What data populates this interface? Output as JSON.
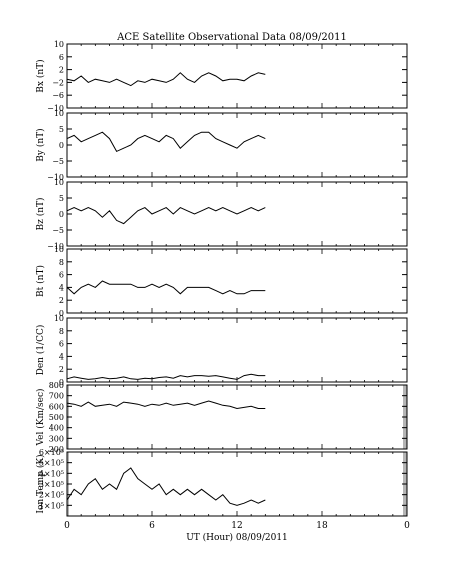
{
  "title": "ACE Satellite Observational Data   08/09/2011",
  "x_axis": {
    "label": "UT (Hour)  08/09/2011",
    "ticks": [
      "0",
      "6",
      "12",
      "18",
      "0"
    ],
    "range": [
      0,
      24
    ]
  },
  "chart_data": [
    {
      "type": "line",
      "ylabel": "Bx (nT)",
      "ylim": [
        -10,
        10
      ],
      "yticks": [
        {
          "v": 10,
          "t": "10"
        },
        {
          "v": 6,
          "t": "6"
        },
        {
          "v": 2,
          "t": "2"
        },
        {
          "v": -2,
          "t": "−2"
        },
        {
          "v": -6,
          "t": "−6"
        },
        {
          "v": -10,
          "t": "−10"
        }
      ],
      "data_end_hour": 14,
      "series": [
        {
          "x": [
            0,
            0.5,
            1,
            1.5,
            2,
            2.5,
            3,
            3.5,
            4,
            4.5,
            5,
            5.5,
            6,
            6.5,
            7,
            7.5,
            8,
            8.5,
            9,
            9.5,
            10,
            10.5,
            11,
            11.5,
            12,
            12.5,
            13,
            13.5,
            14
          ],
          "values": [
            -1,
            -1.5,
            0,
            -2,
            -1,
            -1.5,
            -2,
            -1,
            -2,
            -3,
            -1.5,
            -2,
            -1,
            -1.5,
            -2,
            -1,
            1,
            -1,
            -2,
            0,
            1,
            0,
            -1.5,
            -1,
            -1,
            -1.5,
            0,
            1,
            0.5
          ]
        }
      ]
    },
    {
      "type": "line",
      "ylabel": "By (nT)",
      "ylim": [
        -10,
        10
      ],
      "yticks": [
        {
          "v": 10,
          "t": "10"
        },
        {
          "v": 5,
          "t": "5"
        },
        {
          "v": 0,
          "t": "0"
        },
        {
          "v": -5,
          "t": "−5"
        },
        {
          "v": -10,
          "t": "−10"
        }
      ],
      "data_end_hour": 14,
      "series": [
        {
          "x": [
            0,
            0.5,
            1,
            1.5,
            2,
            2.5,
            3,
            3.5,
            4,
            4.5,
            5,
            5.5,
            6,
            6.5,
            7,
            7.5,
            8,
            8.5,
            9,
            9.5,
            10,
            10.5,
            11,
            11.5,
            12,
            12.5,
            13,
            13.5,
            14
          ],
          "values": [
            2,
            3,
            1,
            2,
            3,
            4,
            2,
            -2,
            -1,
            0,
            2,
            3,
            2,
            1,
            3,
            2,
            -1,
            1,
            3,
            4,
            4,
            2,
            1,
            0,
            -1,
            1,
            2,
            3,
            2
          ]
        }
      ]
    },
    {
      "type": "line",
      "ylabel": "Bz (nT)",
      "ylim": [
        -10,
        10
      ],
      "yticks": [
        {
          "v": 10,
          "t": "10"
        },
        {
          "v": 5,
          "t": "5"
        },
        {
          "v": 0,
          "t": "0"
        },
        {
          "v": -5,
          "t": "−5"
        },
        {
          "v": -10,
          "t": "−10"
        }
      ],
      "data_end_hour": 14,
      "series": [
        {
          "x": [
            0,
            0.5,
            1,
            1.5,
            2,
            2.5,
            3,
            3.5,
            4,
            4.5,
            5,
            5.5,
            6,
            6.5,
            7,
            7.5,
            8,
            8.5,
            9,
            9.5,
            10,
            10.5,
            11,
            11.5,
            12,
            12.5,
            13,
            13.5,
            14
          ],
          "values": [
            1,
            2,
            1,
            2,
            1,
            -1,
            1,
            -2,
            -3,
            -1,
            1,
            2,
            0,
            1,
            2,
            0,
            2,
            1,
            0,
            1,
            2,
            1,
            2,
            1,
            0,
            1,
            2,
            1,
            2
          ]
        }
      ]
    },
    {
      "type": "line",
      "ylabel": "Bt (nT)",
      "ylim": [
        0,
        10
      ],
      "yticks": [
        {
          "v": 10,
          "t": "10"
        },
        {
          "v": 8,
          "t": "8"
        },
        {
          "v": 6,
          "t": "6"
        },
        {
          "v": 4,
          "t": "4"
        },
        {
          "v": 2,
          "t": "2"
        },
        {
          "v": 0,
          "t": "0"
        }
      ],
      "data_end_hour": 14,
      "series": [
        {
          "x": [
            0,
            0.5,
            1,
            1.5,
            2,
            2.5,
            3,
            3.5,
            4,
            4.5,
            5,
            5.5,
            6,
            6.5,
            7,
            7.5,
            8,
            8.5,
            9,
            9.5,
            10,
            10.5,
            11,
            11.5,
            12,
            12.5,
            13,
            13.5,
            14
          ],
          "values": [
            4,
            3,
            4,
            4.5,
            4,
            5,
            4.5,
            4.5,
            4.5,
            4.5,
            4,
            4,
            4.5,
            4,
            4.5,
            4,
            3,
            4,
            4,
            4,
            4,
            3.5,
            3,
            3.5,
            3,
            3,
            3.5,
            3.5,
            3.5
          ]
        }
      ]
    },
    {
      "type": "line",
      "ylabel": "Den (1/CC)",
      "ylim": [
        0,
        10
      ],
      "yticks": [
        {
          "v": 10,
          "t": "10"
        },
        {
          "v": 8,
          "t": "8"
        },
        {
          "v": 6,
          "t": "6"
        },
        {
          "v": 4,
          "t": "4"
        },
        {
          "v": 2,
          "t": "2"
        },
        {
          "v": 0,
          "t": "0"
        }
      ],
      "data_end_hour": 14,
      "series": [
        {
          "x": [
            0,
            0.5,
            1,
            1.5,
            2,
            2.5,
            3,
            3.5,
            4,
            4.5,
            5,
            5.5,
            6,
            6.5,
            7,
            7.5,
            8,
            8.5,
            9,
            9.5,
            10,
            10.5,
            11,
            11.5,
            12,
            12.5,
            13,
            13.5,
            14
          ],
          "values": [
            0.5,
            0.8,
            0.6,
            0.4,
            0.5,
            0.7,
            0.5,
            0.6,
            0.8,
            0.5,
            0.4,
            0.6,
            0.5,
            0.7,
            0.8,
            0.6,
            1,
            0.8,
            1,
            1,
            0.9,
            1,
            0.8,
            0.6,
            0.4,
            1,
            1.2,
            1,
            1
          ]
        }
      ]
    },
    {
      "type": "line",
      "ylabel": "Vel (Km/sec)",
      "ylim": [
        200,
        800
      ],
      "yticks": [
        {
          "v": 800,
          "t": "800"
        },
        {
          "v": 700,
          "t": "700"
        },
        {
          "v": 600,
          "t": "600"
        },
        {
          "v": 500,
          "t": "500"
        },
        {
          "v": 400,
          "t": "400"
        },
        {
          "v": 300,
          "t": "300"
        },
        {
          "v": 200,
          "t": "200"
        }
      ],
      "data_end_hour": 14,
      "right_shaded": true,
      "series": [
        {
          "x": [
            0,
            0.5,
            1,
            1.5,
            2,
            2.5,
            3,
            3.5,
            4,
            4.5,
            5,
            5.5,
            6,
            6.5,
            7,
            7.5,
            8,
            8.5,
            9,
            9.5,
            10,
            10.5,
            11,
            11.5,
            12,
            12.5,
            13,
            13.5,
            14
          ],
          "values": [
            630,
            620,
            600,
            640,
            600,
            610,
            620,
            600,
            640,
            630,
            620,
            600,
            620,
            610,
            630,
            610,
            620,
            630,
            610,
            630,
            650,
            630,
            610,
            600,
            580,
            590,
            600,
            580,
            580
          ]
        }
      ]
    },
    {
      "type": "line",
      "ylabel": "Ion Temp (K)",
      "ylim": [
        0,
        600000
      ],
      "yticks": [
        {
          "v": 600000,
          "t": "6×10⁵"
        },
        {
          "v": 500000,
          "t": "5×10⁵"
        },
        {
          "v": 400000,
          "t": "4×10⁵"
        },
        {
          "v": 300000,
          "t": "3×10⁵"
        },
        {
          "v": 200000,
          "t": "2×10⁵"
        },
        {
          "v": 100000,
          "t": "1×10⁵"
        }
      ],
      "data_end_hour": 14,
      "right_shaded": true,
      "series": [
        {
          "x": [
            0,
            0.5,
            1,
            1.5,
            2,
            2.5,
            3,
            3.5,
            4,
            4.5,
            5,
            5.5,
            6,
            6.5,
            7,
            7.5,
            8,
            8.5,
            9,
            9.5,
            10,
            10.5,
            11,
            11.5,
            12,
            12.5,
            13,
            13.5,
            14
          ],
          "values": [
            150000,
            250000,
            200000,
            300000,
            350000,
            250000,
            300000,
            250000,
            400000,
            450000,
            350000,
            300000,
            250000,
            300000,
            200000,
            250000,
            200000,
            250000,
            200000,
            250000,
            200000,
            150000,
            200000,
            120000,
            100000,
            120000,
            150000,
            120000,
            150000
          ]
        }
      ]
    }
  ]
}
